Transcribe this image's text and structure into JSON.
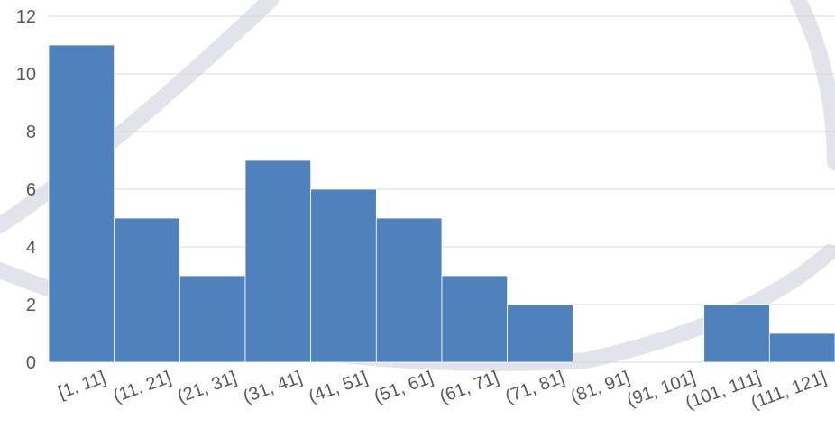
{
  "chart_data": {
    "type": "bar",
    "title": "",
    "xlabel": "",
    "ylabel": "",
    "categories": [
      "[1, 11]",
      "(11, 21]",
      "(21, 31]",
      "(31, 41]",
      "(41, 51]",
      "(51, 61]",
      "(61, 71]",
      "(71, 81]",
      "(81, 91]",
      "(91, 101]",
      "(101, 111]",
      "(111, 121]"
    ],
    "values": [
      11,
      5,
      3,
      7,
      6,
      5,
      3,
      2,
      0,
      0,
      2,
      1
    ],
    "ylim": [
      0,
      12
    ],
    "yticks": [
      "0",
      "2",
      "4",
      "6",
      "8",
      "10",
      "12"
    ],
    "grid": true,
    "legend": "none",
    "colors": {
      "bar": "#4f81bd",
      "grid": "#d9d9d9",
      "text": "#595959",
      "watermark": "#e3e3ec"
    }
  }
}
